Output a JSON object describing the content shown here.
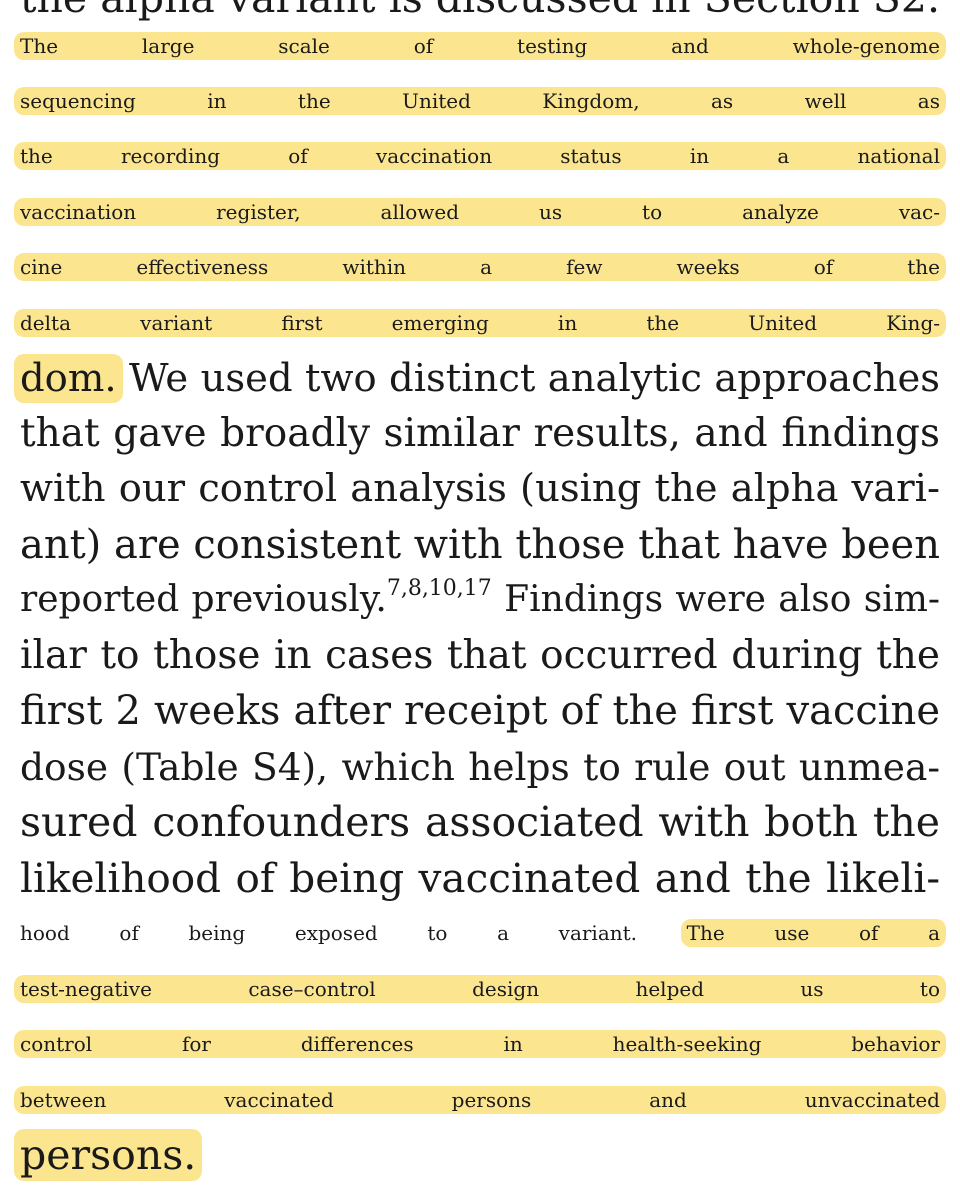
{
  "article": {
    "top_fragment": "the alpha variant is discussed in Section S2.",
    "lines": [
      {
        "hl": "The large scale of testing and whole-genome"
      },
      {
        "hl": "sequencing in the United Kingdom, as well as"
      },
      {
        "hl": "the recording of vaccination status in a national"
      },
      {
        "hl": "vaccination register, allowed us to analyze vac-"
      },
      {
        "hl": "cine effectiveness within a few weeks of the"
      },
      {
        "hl": "delta variant first emerging in the United King-"
      },
      {
        "hl": "dom.",
        "plain": " We used two distinct analytic approaches"
      },
      {
        "plain": "that gave broadly similar results, and findings"
      },
      {
        "plain": "with our control analysis (using the alpha vari-"
      },
      {
        "plain": "ant) are consistent with those that have been"
      },
      {
        "plain": "reported previously.",
        "sup": "7,8,10,17",
        "plain2": " Findings were also sim-"
      },
      {
        "plain": "ilar to those in cases that occurred during the"
      },
      {
        "plain": "first 2 weeks after receipt of the first vaccine"
      },
      {
        "plain": "dose (Table S4), which helps to rule out unmea-"
      },
      {
        "plain": "sured confounders associated with both the"
      },
      {
        "plain": "likelihood of being vaccinated and the likeli-"
      },
      {
        "plain": "hood of being exposed to a variant. ",
        "hl": "The use of a"
      },
      {
        "hl": "test-negative case–control design helped us to"
      },
      {
        "hl": "control for differences in health-seeking behavior"
      },
      {
        "hl": "between vaccinated persons and unvaccinated"
      },
      {
        "hl": "persons."
      }
    ]
  },
  "colors": {
    "highlight": "#fce58f",
    "text": "#1a1a1a",
    "background": "#ffffff"
  }
}
